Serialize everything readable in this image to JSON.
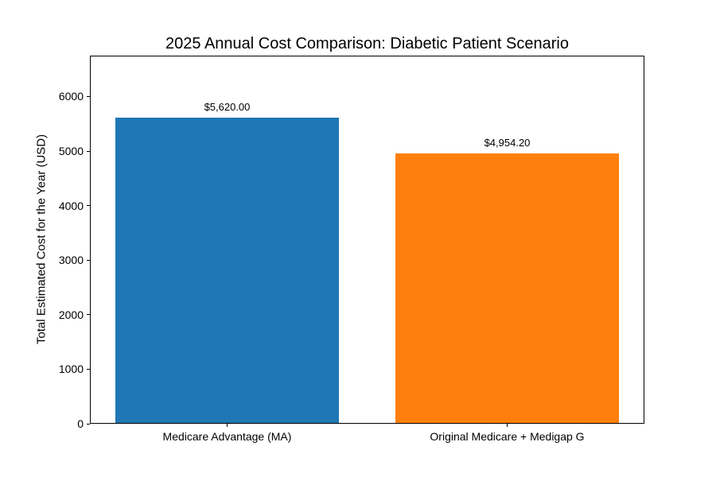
{
  "chart_data": {
    "type": "bar",
    "title": "2025 Annual Cost Comparison: Diabetic Patient Scenario",
    "xlabel": "",
    "ylabel": "Total Estimated Cost for the Year (USD)",
    "categories": [
      "Medicare Advantage (MA)",
      "Original Medicare + Medigap G"
    ],
    "values": [
      5620.0,
      4954.2
    ],
    "value_labels": [
      "$5,620.00",
      "$4,954.20"
    ],
    "bar_colors": [
      "#1f77b4",
      "#ff7f0e"
    ],
    "yticks": [
      0,
      1000,
      2000,
      3000,
      4000,
      5000,
      6000
    ],
    "ylim": [
      0,
      6750
    ],
    "grid": false,
    "legend": "none",
    "background_color": "#ffffff",
    "text_color": "#000000"
  }
}
